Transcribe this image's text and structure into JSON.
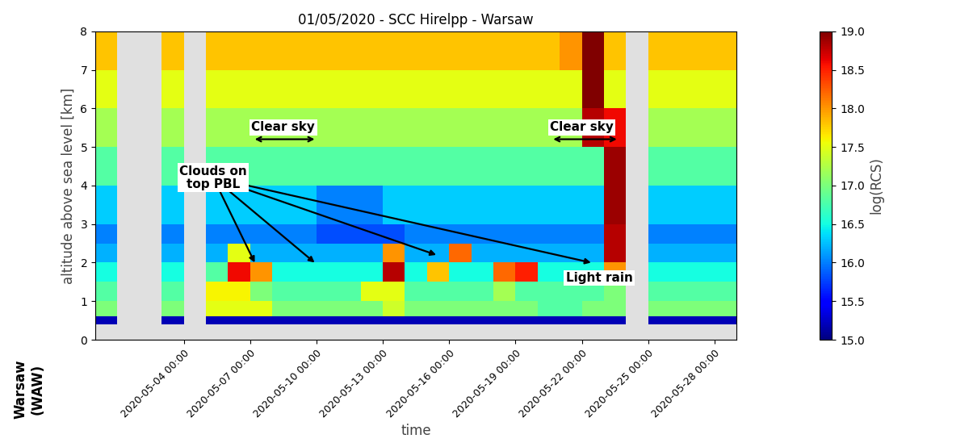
{
  "chart_data": {
    "type": "heatmap",
    "title": "01/05/2020 - SCC Hirelpp - Warsaw",
    "side_label": "Warsaw\n(WAW)",
    "x_label": "time",
    "y_label": "altitude above sea level [km]",
    "xlim": [
      "2020-04-30 00:00",
      "2020-05-29 00:00"
    ],
    "xticks": [
      "2020-05-04 00:00",
      "2020-05-07 00:00",
      "2020-05-10 00:00",
      "2020-05-13 00:00",
      "2020-05-16 00:00",
      "2020-05-19 00:00",
      "2020-05-22 00:00",
      "2020-05-25 00:00",
      "2020-05-28 00:00"
    ],
    "ylim": [
      0,
      8
    ],
    "yticks": [
      0,
      1,
      2,
      3,
      4,
      5,
      6,
      7,
      8
    ],
    "grid": false,
    "x_edges": [
      "2020-04-30 00:00",
      "2020-05-01 00:00",
      "2020-05-02 00:00",
      "2020-05-03 00:00",
      "2020-05-04 00:00",
      "2020-05-05 00:00",
      "2020-05-06 00:00",
      "2020-05-07 00:00",
      "2020-05-08 00:00",
      "2020-05-09 00:00",
      "2020-05-10 00:00",
      "2020-05-11 00:00",
      "2020-05-12 00:00",
      "2020-05-13 00:00",
      "2020-05-14 00:00",
      "2020-05-15 00:00",
      "2020-05-16 00:00",
      "2020-05-17 00:00",
      "2020-05-18 00:00",
      "2020-05-19 00:00",
      "2020-05-20 00:00",
      "2020-05-21 00:00",
      "2020-05-22 00:00",
      "2020-05-23 00:00",
      "2020-05-24 00:00",
      "2020-05-25 00:00",
      "2020-05-26 00:00",
      "2020-05-27 00:00",
      "2020-05-28 00:00",
      "2020-05-29 00:00"
    ],
    "y_edges": [
      0.4,
      0.6,
      1.0,
      1.5,
      2.0,
      2.5,
      3.0,
      4.0,
      5.0,
      6.0,
      7.0,
      8.0
    ],
    "values": [
      [
        15.2,
        null,
        null,
        15.2,
        null,
        15.2,
        15.2,
        15.2,
        15.2,
        15.2,
        15.2,
        15.2,
        15.2,
        15.2,
        15.2,
        15.2,
        15.2,
        15.2,
        15.2,
        15.2,
        15.2,
        15.2,
        15.2,
        15.2,
        null,
        15.2,
        15.2,
        15.2,
        15.2
      ],
      [
        17.0,
        null,
        null,
        17.0,
        null,
        17.5,
        17.5,
        17.5,
        17.0,
        17.0,
        17.0,
        17.0,
        17.0,
        17.4,
        17.0,
        17.0,
        17.0,
        17.0,
        17.0,
        17.0,
        16.8,
        16.8,
        17.0,
        17.0,
        null,
        17.0,
        17.0,
        17.0,
        17.0
      ],
      [
        16.8,
        null,
        null,
        16.8,
        null,
        17.6,
        17.6,
        17.0,
        16.8,
        16.8,
        16.8,
        16.8,
        17.5,
        17.5,
        16.8,
        16.8,
        16.8,
        16.8,
        17.2,
        16.8,
        16.8,
        16.8,
        16.8,
        17.0,
        null,
        16.8,
        16.8,
        16.8,
        16.8
      ],
      [
        16.5,
        null,
        null,
        16.5,
        null,
        16.8,
        18.6,
        18.0,
        16.5,
        16.5,
        16.5,
        16.5,
        16.5,
        18.8,
        16.5,
        17.8,
        16.5,
        16.5,
        18.2,
        18.5,
        16.5,
        16.5,
        16.5,
        18.0,
        null,
        16.5,
        16.5,
        16.5,
        16.5
      ],
      [
        16.2,
        null,
        null,
        16.2,
        null,
        16.2,
        17.5,
        16.2,
        16.2,
        16.2,
        16.2,
        16.2,
        16.2,
        18.0,
        16.2,
        16.2,
        18.2,
        16.2,
        16.2,
        16.2,
        16.2,
        16.2,
        16.2,
        18.8,
        null,
        16.2,
        16.2,
        16.2,
        16.2
      ],
      [
        16.0,
        null,
        null,
        16.0,
        null,
        16.0,
        16.0,
        16.0,
        16.0,
        16.0,
        15.8,
        15.8,
        15.8,
        15.8,
        16.0,
        16.0,
        16.0,
        16.0,
        16.0,
        16.0,
        16.0,
        16.0,
        16.0,
        18.8,
        null,
        16.0,
        16.0,
        16.0,
        16.0
      ],
      [
        16.3,
        null,
        null,
        16.3,
        null,
        16.3,
        16.3,
        16.3,
        16.3,
        16.3,
        16.0,
        16.0,
        16.0,
        16.3,
        16.3,
        16.3,
        16.3,
        16.3,
        16.3,
        16.3,
        16.3,
        16.3,
        16.3,
        18.9,
        null,
        16.3,
        16.3,
        16.3,
        16.3
      ],
      [
        16.8,
        null,
        null,
        16.8,
        null,
        16.8,
        16.8,
        16.8,
        16.8,
        16.8,
        16.8,
        16.8,
        16.8,
        16.8,
        16.8,
        16.8,
        16.8,
        16.8,
        16.8,
        16.8,
        16.8,
        16.8,
        16.8,
        18.9,
        null,
        16.8,
        16.8,
        16.8,
        16.8
      ],
      [
        17.2,
        null,
        null,
        17.2,
        null,
        17.2,
        17.2,
        17.2,
        17.2,
        17.2,
        17.2,
        17.2,
        17.2,
        17.2,
        17.2,
        17.2,
        17.2,
        17.2,
        17.2,
        17.2,
        17.2,
        17.2,
        18.8,
        18.6,
        null,
        17.2,
        17.2,
        17.2,
        17.2
      ],
      [
        17.5,
        null,
        null,
        17.5,
        null,
        17.5,
        17.5,
        17.5,
        17.5,
        17.5,
        17.5,
        17.5,
        17.5,
        17.5,
        17.5,
        17.5,
        17.5,
        17.5,
        17.5,
        17.5,
        17.5,
        17.5,
        19.0,
        17.5,
        null,
        17.5,
        17.5,
        17.5,
        17.5
      ],
      [
        17.8,
        null,
        null,
        17.8,
        null,
        17.8,
        17.8,
        17.8,
        17.8,
        17.8,
        17.8,
        17.8,
        17.8,
        17.8,
        17.8,
        17.8,
        17.8,
        17.8,
        17.8,
        17.8,
        17.8,
        18.0,
        19.0,
        17.8,
        null,
        17.8,
        17.8,
        17.8,
        17.8
      ]
    ],
    "colorbar_label": "log(RCS)",
    "colorbar_lim": [
      15,
      19
    ],
    "colorbar_ticks": [
      {
        "value": 15,
        "label": "15.0"
      },
      {
        "value": 15.5,
        "label": "15.5"
      },
      {
        "value": 16,
        "label": "16.0"
      },
      {
        "value": 16.5,
        "label": "16.5"
      },
      {
        "value": 17,
        "label": "17.0"
      },
      {
        "value": 17.5,
        "label": "17.5"
      },
      {
        "value": 18,
        "label": "18.0"
      },
      {
        "value": 18.5,
        "label": "18.5"
      },
      {
        "value": 19,
        "label": "19.0"
      }
    ],
    "annotations": [
      {
        "text": "Clouds on\ntop PBL",
        "x": "2020-05-05 08:00",
        "y": 4.2,
        "arrows_to": [
          {
            "x": "2020-05-07 05:00",
            "y": 2.0
          },
          {
            "x": "2020-05-09 22:00",
            "y": 2.0
          },
          {
            "x": "2020-05-15 10:00",
            "y": 2.2
          },
          {
            "x": "2020-05-22 10:00",
            "y": 2.0
          }
        ]
      },
      {
        "text": "Clear sky",
        "x": "2020-05-08 12:00",
        "y": 5.35,
        "span": {
          "x": [
            "2020-05-07 05:00",
            "2020-05-09 22:00"
          ],
          "y": 5.2
        }
      },
      {
        "text": "Clear sky",
        "x": "2020-05-22 00:00",
        "y": 5.35,
        "span": {
          "x": [
            "2020-05-20 17:00",
            "2020-05-23 14:00"
          ],
          "y": 5.2
        }
      },
      {
        "text": "Light rain",
        "x": "2020-05-22 19:00",
        "y": 1.6
      }
    ]
  }
}
